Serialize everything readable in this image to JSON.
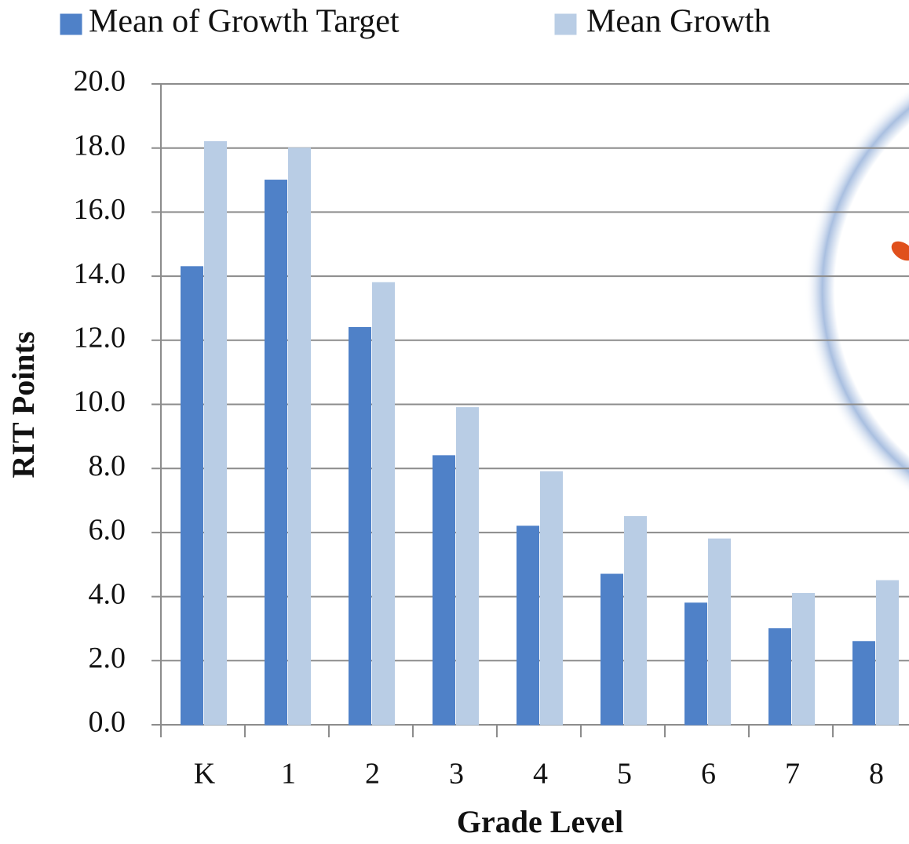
{
  "chart_data": {
    "type": "bar",
    "y_label": "RIT Points",
    "x_label": "Grade Level",
    "categories": [
      "K",
      "1",
      "2",
      "3",
      "4",
      "5",
      "6",
      "7",
      "8"
    ],
    "series": [
      {
        "name": "Mean of Growth Target",
        "color": "#4f81c8",
        "values": [
          14.3,
          17.0,
          12.4,
          8.4,
          6.2,
          4.7,
          3.8,
          3.0,
          2.6
        ]
      },
      {
        "name": "Mean Growth",
        "color": "#b9cde5",
        "values": [
          18.2,
          18.0,
          13.8,
          9.9,
          7.9,
          6.5,
          5.8,
          4.1,
          4.5
        ]
      }
    ],
    "ylim": [
      0,
      20
    ],
    "yticks": [
      {
        "value": 0,
        "label": "0.0"
      },
      {
        "value": 2,
        "label": "2.0"
      },
      {
        "value": 4,
        "label": "4.0"
      },
      {
        "value": 6,
        "label": "6.0"
      },
      {
        "value": 8,
        "label": "8.0"
      },
      {
        "value": 10,
        "label": "10.0"
      },
      {
        "value": 12,
        "label": "12.0"
      },
      {
        "value": 14,
        "label": "14.0"
      },
      {
        "value": 16,
        "label": "16.0"
      },
      {
        "value": 18,
        "label": "18.0"
      },
      {
        "value": 20,
        "label": "20.0"
      }
    ],
    "grid": true,
    "legend": "top"
  }
}
